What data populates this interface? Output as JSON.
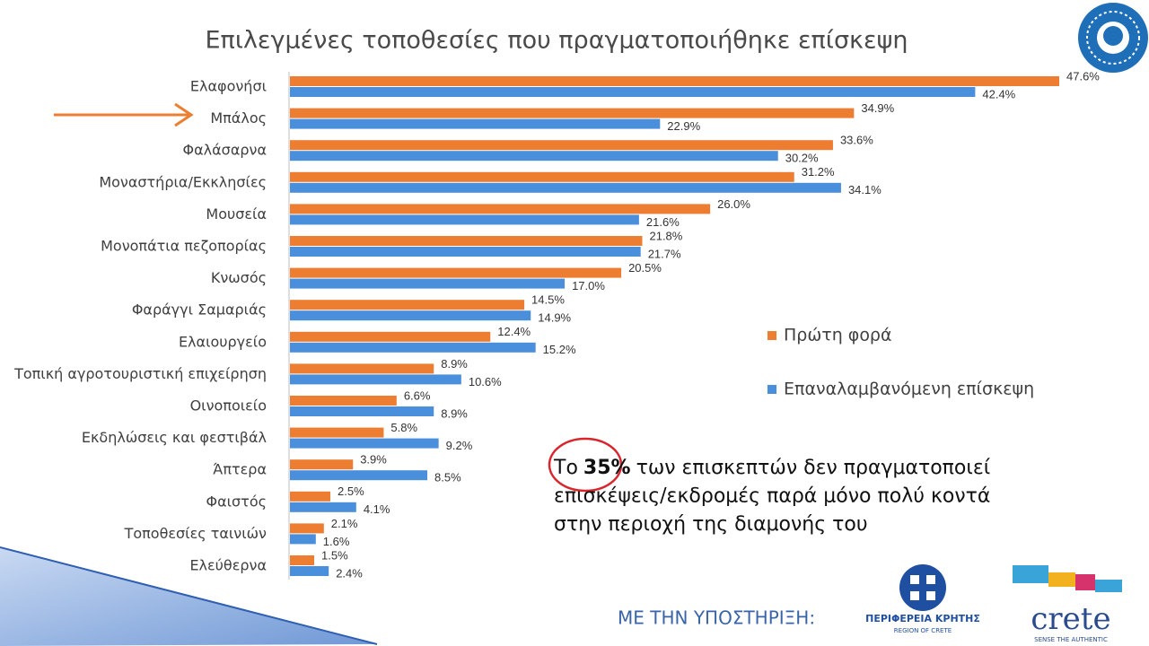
{
  "chart_data": {
    "type": "bar",
    "orientation": "horizontal",
    "title": "Επιλεγμένες τοποθεσίες που πραγματοποιήθηκε επίσκεψη",
    "categories": [
      "Ελαφονήσι",
      "Μπάλος",
      "Φαλάσαρνα",
      "Μοναστήρια/Εκκλησίες",
      "Μουσεία",
      "Μονοπάτια πεζοπορίας",
      "Κνωσός",
      "Φαράγγι Σαμαριάς",
      "Ελαιουργείο",
      "Τοπική αγροτουριστική επιχείρηση",
      "Οινοποιείο",
      "Εκδηλώσεις και φεστιβάλ",
      "Άπτερα",
      "Φαιστός",
      "Τοποθεσίες ταινιών",
      "Ελεύθερνα"
    ],
    "series": [
      {
        "name": "Πρώτη φορά",
        "color": "#ED7D31",
        "values": [
          47.6,
          34.9,
          33.6,
          31.2,
          26.0,
          21.8,
          20.5,
          14.5,
          12.4,
          8.9,
          6.6,
          5.8,
          3.9,
          2.5,
          2.1,
          1.5
        ],
        "value_labels": [
          "47.6%",
          "34.9%",
          "33.6%",
          "31.2%",
          "26.0%",
          "21.8%",
          "20.5%",
          "14.5%",
          "12.4%",
          "8.9%",
          "6.6%",
          "5.8%",
          "3.9%",
          "2.5%",
          "2.1%",
          "1.5%"
        ]
      },
      {
        "name": "Επαναλαμβανόμενη επίσκεψη",
        "color": "#4A8FDC",
        "values": [
          42.4,
          22.9,
          30.2,
          34.1,
          21.6,
          21.7,
          17.0,
          14.9,
          15.2,
          10.6,
          8.9,
          9.2,
          8.5,
          4.1,
          1.6,
          2.4
        ],
        "value_labels": [
          "42.4%",
          "22.9%",
          "30.2%",
          "34.1%",
          "21.6%",
          "21.7%",
          "17.0%",
          "14.9%",
          "15.2%",
          "10.6%",
          "8.9%",
          "9.2%",
          "8.5%",
          "4.1%",
          "1.6%",
          "2.4%"
        ]
      }
    ],
    "legend": "right",
    "annotation": [
      [
        "Το",
        "35%",
        "των επισκεπτών δεν πραγματοποιεί"
      ],
      [
        "επισκέψεις/εκδρομές παρά μόνο πολύ κοντά"
      ],
      [
        "στην περιοχή της διαμονής του"
      ]
    ]
  },
  "footer": {
    "support": "ΜΕ ΤΗΝ ΥΠΟΣΤΗΡΙΞΗ:",
    "region": "ΠΕΡΙΦΕΡΕΙΑ ΚΡΗΤΗΣ",
    "region_en": "REGION OF CRETE",
    "brand": "crete",
    "slogan": "SENSE THE AUTHENTIC"
  }
}
